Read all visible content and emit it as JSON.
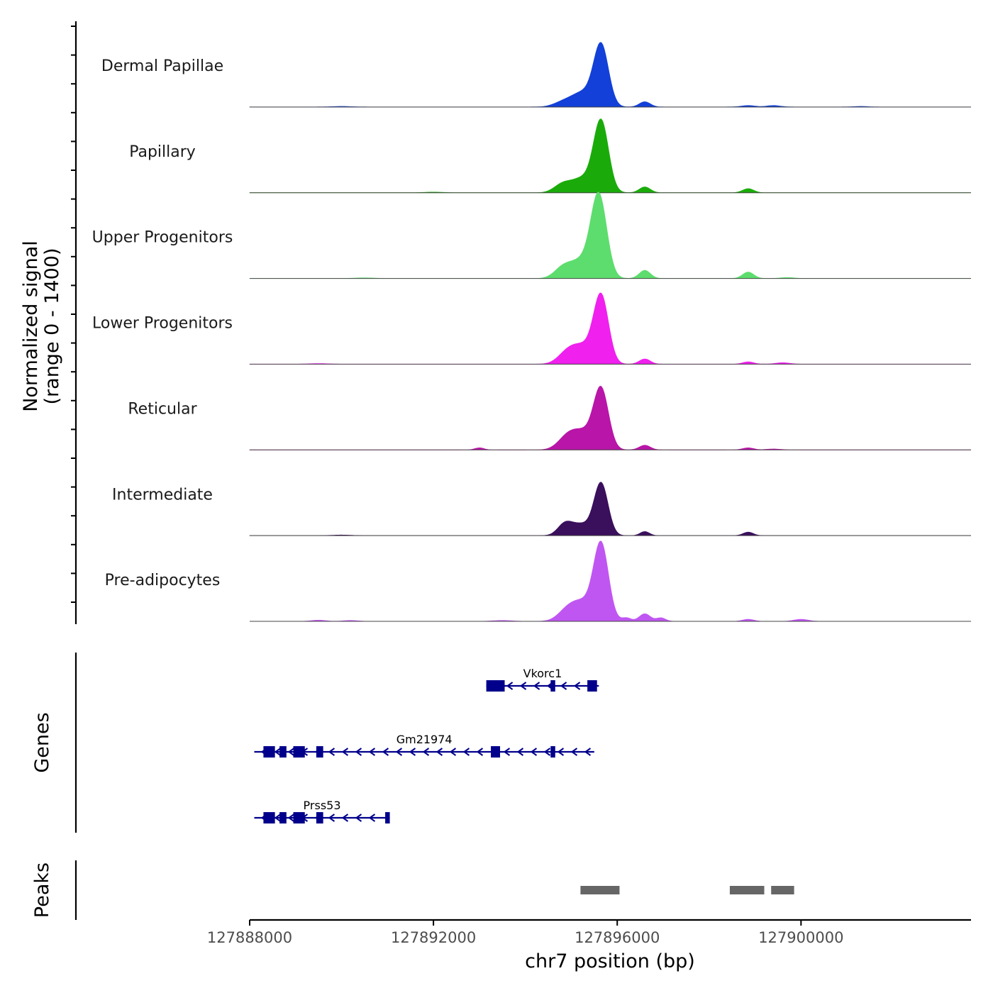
{
  "chart_data": {
    "type": "area",
    "title": "",
    "xlabel": "chr7 position (bp)",
    "ylabel_line1": "Normalized signal",
    "ylabel_line2": "(range 0 - 1400)",
    "ylim": [
      0,
      1400
    ],
    "xlim": [
      127888000,
      127903700
    ],
    "x_ticks": [
      127888000,
      127892000,
      127896000,
      127900000
    ],
    "x_tick_labels": [
      "127888000",
      "127892000",
      "127896000",
      "127900000"
    ],
    "series": [
      {
        "name": "Dermal Papillae",
        "color": "#1240d8",
        "peak_value": 1040,
        "peaks": [
          [
            127895650,
            1040,
            160
          ],
          [
            127895250,
            250,
            250
          ],
          [
            127894800,
            70,
            200
          ],
          [
            127896600,
            90,
            120
          ],
          [
            127898850,
            25,
            150
          ],
          [
            127899400,
            25,
            150
          ],
          [
            127890000,
            10,
            200
          ],
          [
            127901300,
            10,
            150
          ]
        ]
      },
      {
        "name": "Papillary",
        "color": "#1aab0a",
        "peak_value": 1200,
        "peaks": [
          [
            127895650,
            1200,
            160
          ],
          [
            127895250,
            250,
            250
          ],
          [
            127894800,
            130,
            180
          ],
          [
            127896600,
            100,
            120
          ],
          [
            127898850,
            70,
            120
          ],
          [
            127892000,
            10,
            200
          ]
        ]
      },
      {
        "name": "Upper Progenitors",
        "color": "#5ddd6d",
        "peak_value": 1400,
        "peaks": [
          [
            127895600,
            1400,
            170
          ],
          [
            127895200,
            300,
            250
          ],
          [
            127894800,
            150,
            180
          ],
          [
            127896600,
            140,
            120
          ],
          [
            127898850,
            110,
            120
          ],
          [
            127899700,
            15,
            150
          ],
          [
            127890500,
            10,
            200
          ]
        ]
      },
      {
        "name": "Lower Progenitors",
        "color": "#f020ee",
        "peak_value": 1140,
        "peaks": [
          [
            127895650,
            1140,
            160
          ],
          [
            127895250,
            300,
            250
          ],
          [
            127894900,
            160,
            200
          ],
          [
            127896600,
            90,
            120
          ],
          [
            127898850,
            40,
            120
          ],
          [
            127899600,
            25,
            150
          ],
          [
            127889500,
            10,
            200
          ]
        ]
      },
      {
        "name": "Reticular",
        "color": "#b915a8",
        "peak_value": 1010,
        "peaks": [
          [
            127895650,
            1010,
            160
          ],
          [
            127895250,
            300,
            250
          ],
          [
            127894900,
            180,
            200
          ],
          [
            127896600,
            80,
            120
          ],
          [
            127893000,
            35,
            100
          ],
          [
            127898850,
            35,
            120
          ],
          [
            127899400,
            15,
            150
          ]
        ]
      },
      {
        "name": "Intermediate",
        "color": "#3a0f5c",
        "peak_value": 880,
        "peaks": [
          [
            127895650,
            880,
            150
          ],
          [
            127895200,
            200,
            250
          ],
          [
            127894850,
            160,
            150
          ],
          [
            127896600,
            70,
            100
          ],
          [
            127898850,
            60,
            110
          ],
          [
            127890000,
            10,
            200
          ]
        ]
      },
      {
        "name": "Pre-adipocytes",
        "color": "#c056f2",
        "peak_value": 1290,
        "peaks": [
          [
            127895650,
            1290,
            160
          ],
          [
            127895250,
            320,
            250
          ],
          [
            127894900,
            150,
            200
          ],
          [
            127896600,
            130,
            120
          ],
          [
            127896950,
            60,
            100
          ],
          [
            127896200,
            60,
            100
          ],
          [
            127898850,
            35,
            120
          ],
          [
            127900000,
            35,
            150
          ],
          [
            127889500,
            20,
            150
          ],
          [
            127890200,
            15,
            150
          ],
          [
            127893500,
            15,
            200
          ]
        ]
      }
    ],
    "genes": {
      "title": "Genes",
      "items": [
        {
          "name": "Vkorc1",
          "start": 127893150,
          "end": 127895600,
          "strand": "-",
          "exons": [
            [
              127893150,
              127893550
            ],
            [
              127894550,
              127894650
            ],
            [
              127895350,
              127895560
            ]
          ]
        },
        {
          "name": "Gm21974",
          "start": 127888100,
          "end": 127895500,
          "strand": "-",
          "exons": [
            [
              127888300,
              127888550
            ],
            [
              127888650,
              127888800
            ],
            [
              127888950,
              127889200
            ],
            [
              127889450,
              127889600
            ],
            [
              127893250,
              127893450
            ],
            [
              127894550,
              127894650
            ]
          ]
        },
        {
          "name": "Prss53",
          "start": 127888100,
          "end": 127891050,
          "strand": "-",
          "exons": [
            [
              127888300,
              127888550
            ],
            [
              127888650,
              127888800
            ],
            [
              127888950,
              127889200
            ],
            [
              127889450,
              127889600
            ],
            [
              127890950,
              127891050
            ]
          ]
        }
      ]
    },
    "peaks": {
      "title": "Peaks",
      "regions": [
        [
          127895200,
          127896050
        ],
        [
          127898450,
          127899200
        ],
        [
          127899350,
          127899850
        ]
      ]
    }
  }
}
